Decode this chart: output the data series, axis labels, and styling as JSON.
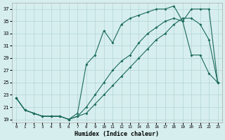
{
  "title": "",
  "xlabel": "Humidex (Indice chaleur)",
  "background_color": "#d7eeee",
  "grid_color": "#b8d8d8",
  "line_color": "#1a6b5a",
  "ylim": [
    18.5,
    38
  ],
  "xlim": [
    -0.5,
    23.5
  ],
  "yticks": [
    19,
    21,
    23,
    25,
    27,
    29,
    31,
    33,
    35,
    37
  ],
  "xticks": [
    0,
    1,
    2,
    3,
    4,
    5,
    6,
    7,
    8,
    9,
    10,
    11,
    12,
    13,
    14,
    15,
    16,
    17,
    18,
    19,
    20,
    21,
    22,
    23
  ],
  "line1_x": [
    0,
    1,
    2,
    3,
    4,
    5,
    6,
    7,
    8,
    9,
    10,
    11,
    12,
    13,
    14,
    15,
    16,
    17,
    18,
    19,
    20,
    21,
    22,
    23
  ],
  "line1_y": [
    22.5,
    20.5,
    20.0,
    19.5,
    19.5,
    19.5,
    19.0,
    19.5,
    21.0,
    23.0,
    25.0,
    27.0,
    28.5,
    29.5,
    31.5,
    33.0,
    34.0,
    35.0,
    35.5,
    35.0,
    29.5,
    29.5,
    26.5,
    25.0
  ],
  "line2_x": [
    0,
    1,
    2,
    3,
    4,
    5,
    6,
    7,
    8,
    9,
    10,
    11,
    12,
    13,
    14,
    15,
    16,
    17,
    18,
    19,
    20,
    21,
    22,
    23
  ],
  "line2_y": [
    22.5,
    20.5,
    20.0,
    19.5,
    19.5,
    19.5,
    19.0,
    19.5,
    20.0,
    21.5,
    23.0,
    24.5,
    26.0,
    27.5,
    29.0,
    30.5,
    32.0,
    33.0,
    34.5,
    35.5,
    35.5,
    34.5,
    32.0,
    25.0
  ],
  "line3_x": [
    0,
    1,
    2,
    3,
    4,
    5,
    6,
    7,
    8,
    9,
    10,
    11,
    12,
    13,
    14,
    15,
    16,
    17,
    18,
    19,
    20,
    21,
    22,
    23
  ],
  "line3_y": [
    22.5,
    20.5,
    20.0,
    19.5,
    19.5,
    19.5,
    19.0,
    20.0,
    28.0,
    29.5,
    33.5,
    31.5,
    34.5,
    35.5,
    36.0,
    36.5,
    37.0,
    37.0,
    37.5,
    35.0,
    37.0,
    37.0,
    37.0,
    25.0
  ]
}
